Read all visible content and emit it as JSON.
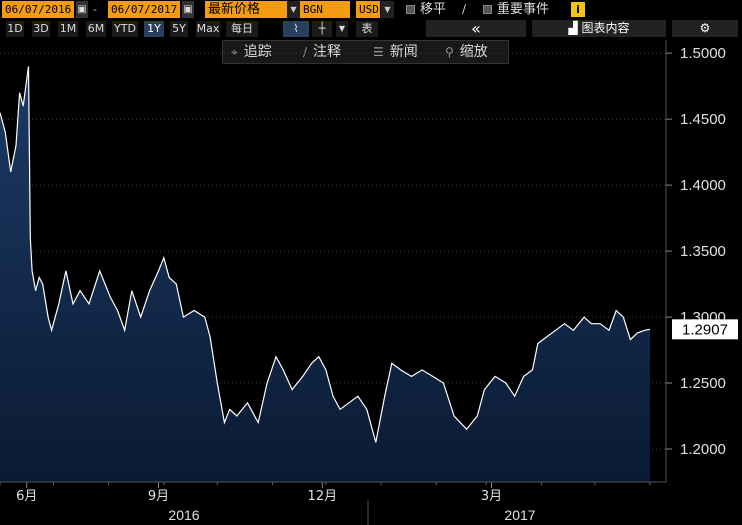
{
  "header": {
    "start_date": "06/07/2016",
    "date_separator": "-",
    "end_date": "06/07/2017",
    "price_field": "最新价格",
    "currency_base": "BGN",
    "currency_quote": "USD",
    "shift_label": "移平",
    "events_label": "重要事件",
    "info_label": "i",
    "chart_contents_label": "图表内容",
    "collapse_label": "«",
    "settings_icon": "gear-icon"
  },
  "periods": [
    "1D",
    "3D",
    "1M",
    "6M",
    "YTD",
    "1Y",
    "5Y",
    "Max"
  ],
  "active_period": "1Y",
  "frequency": "每日",
  "table_label": "表",
  "annotation_bar": {
    "track": "追踪",
    "annotate": "注释",
    "news": "新闻",
    "zoom": "缩放"
  },
  "colors": {
    "accent_orange": "#f39c12",
    "line": "#ffffff",
    "area_top": "#1d3b66",
    "area_bottom": "#0a1a33",
    "last_price_box": "#ffffff"
  },
  "chart_data": {
    "type": "area",
    "series": [
      {
        "values": [
          {
            "x": "2016-06-07",
            "y": 1.455
          },
          {
            "x": "2016-06-10",
            "y": 1.44
          },
          {
            "x": "2016-06-13",
            "y": 1.41
          },
          {
            "x": "2016-06-16",
            "y": 1.43
          },
          {
            "x": "2016-06-18",
            "y": 1.47
          },
          {
            "x": "2016-06-20",
            "y": 1.46
          },
          {
            "x": "2016-06-22",
            "y": 1.48
          },
          {
            "x": "2016-06-23",
            "y": 1.49
          },
          {
            "x": "2016-06-24",
            "y": 1.36
          },
          {
            "x": "2016-06-25",
            "y": 1.335
          },
          {
            "x": "2016-06-27",
            "y": 1.32
          },
          {
            "x": "2016-06-29",
            "y": 1.33
          },
          {
            "x": "2016-07-01",
            "y": 1.325
          },
          {
            "x": "2016-07-04",
            "y": 1.3
          },
          {
            "x": "2016-07-06",
            "y": 1.29
          },
          {
            "x": "2016-07-10",
            "y": 1.31
          },
          {
            "x": "2016-07-14",
            "y": 1.335
          },
          {
            "x": "2016-07-18",
            "y": 1.31
          },
          {
            "x": "2016-07-22",
            "y": 1.32
          },
          {
            "x": "2016-07-27",
            "y": 1.31
          },
          {
            "x": "2016-08-02",
            "y": 1.335
          },
          {
            "x": "2016-08-08",
            "y": 1.315
          },
          {
            "x": "2016-08-12",
            "y": 1.305
          },
          {
            "x": "2016-08-16",
            "y": 1.29
          },
          {
            "x": "2016-08-20",
            "y": 1.32
          },
          {
            "x": "2016-08-25",
            "y": 1.3
          },
          {
            "x": "2016-08-30",
            "y": 1.32
          },
          {
            "x": "2016-09-04",
            "y": 1.335
          },
          {
            "x": "2016-09-07",
            "y": 1.345
          },
          {
            "x": "2016-09-10",
            "y": 1.33
          },
          {
            "x": "2016-09-14",
            "y": 1.325
          },
          {
            "x": "2016-09-18",
            "y": 1.3
          },
          {
            "x": "2016-09-24",
            "y": 1.305
          },
          {
            "x": "2016-09-30",
            "y": 1.3
          },
          {
            "x": "2016-10-03",
            "y": 1.285
          },
          {
            "x": "2016-10-07",
            "y": 1.25
          },
          {
            "x": "2016-10-11",
            "y": 1.22
          },
          {
            "x": "2016-10-14",
            "y": 1.23
          },
          {
            "x": "2016-10-18",
            "y": 1.225
          },
          {
            "x": "2016-10-24",
            "y": 1.235
          },
          {
            "x": "2016-10-30",
            "y": 1.22
          },
          {
            "x": "2016-11-04",
            "y": 1.25
          },
          {
            "x": "2016-11-09",
            "y": 1.27
          },
          {
            "x": "2016-11-13",
            "y": 1.26
          },
          {
            "x": "2016-11-18",
            "y": 1.245
          },
          {
            "x": "2016-11-24",
            "y": 1.255
          },
          {
            "x": "2016-11-29",
            "y": 1.265
          },
          {
            "x": "2016-12-03",
            "y": 1.27
          },
          {
            "x": "2016-12-07",
            "y": 1.26
          },
          {
            "x": "2016-12-11",
            "y": 1.24
          },
          {
            "x": "2016-12-15",
            "y": 1.23
          },
          {
            "x": "2016-12-20",
            "y": 1.235
          },
          {
            "x": "2016-12-25",
            "y": 1.24
          },
          {
            "x": "2016-12-30",
            "y": 1.23
          },
          {
            "x": "2017-01-04",
            "y": 1.205
          },
          {
            "x": "2017-01-09",
            "y": 1.24
          },
          {
            "x": "2017-01-13",
            "y": 1.265
          },
          {
            "x": "2017-01-18",
            "y": 1.26
          },
          {
            "x": "2017-01-24",
            "y": 1.255
          },
          {
            "x": "2017-01-30",
            "y": 1.26
          },
          {
            "x": "2017-02-05",
            "y": 1.255
          },
          {
            "x": "2017-02-11",
            "y": 1.25
          },
          {
            "x": "2017-02-17",
            "y": 1.225
          },
          {
            "x": "2017-02-24",
            "y": 1.215
          },
          {
            "x": "2017-03-02",
            "y": 1.225
          },
          {
            "x": "2017-03-06",
            "y": 1.245
          },
          {
            "x": "2017-03-12",
            "y": 1.255
          },
          {
            "x": "2017-03-18",
            "y": 1.25
          },
          {
            "x": "2017-03-23",
            "y": 1.24
          },
          {
            "x": "2017-03-28",
            "y": 1.255
          },
          {
            "x": "2017-04-02",
            "y": 1.26
          },
          {
            "x": "2017-04-05",
            "y": 1.28
          },
          {
            "x": "2017-04-10",
            "y": 1.285
          },
          {
            "x": "2017-04-15",
            "y": 1.29
          },
          {
            "x": "2017-04-20",
            "y": 1.295
          },
          {
            "x": "2017-04-25",
            "y": 1.29
          },
          {
            "x": "2017-05-01",
            "y": 1.3
          },
          {
            "x": "2017-05-05",
            "y": 1.295
          },
          {
            "x": "2017-05-10",
            "y": 1.295
          },
          {
            "x": "2017-05-15",
            "y": 1.29
          },
          {
            "x": "2017-05-19",
            "y": 1.305
          },
          {
            "x": "2017-05-23",
            "y": 1.3
          },
          {
            "x": "2017-05-27",
            "y": 1.283
          },
          {
            "x": "2017-05-31",
            "y": 1.288
          },
          {
            "x": "2017-06-04",
            "y": 1.29
          },
          {
            "x": "2017-06-07",
            "y": 1.2907
          }
        ]
      }
    ],
    "y_ticks": [
      "1.5000",
      "1.4500",
      "1.4000",
      "1.3500",
      "1.3000",
      "1.2500",
      "1.2000"
    ],
    "x_ticks": [
      "6月",
      "9月",
      "12月",
      "3月"
    ],
    "x_years": [
      "2016",
      "2017"
    ],
    "last_value_label": "1.2907",
    "ylim": [
      1.175,
      1.51
    ],
    "xlim": [
      "2016-06-07",
      "2017-06-07"
    ],
    "grid": "horizontal dashed"
  }
}
